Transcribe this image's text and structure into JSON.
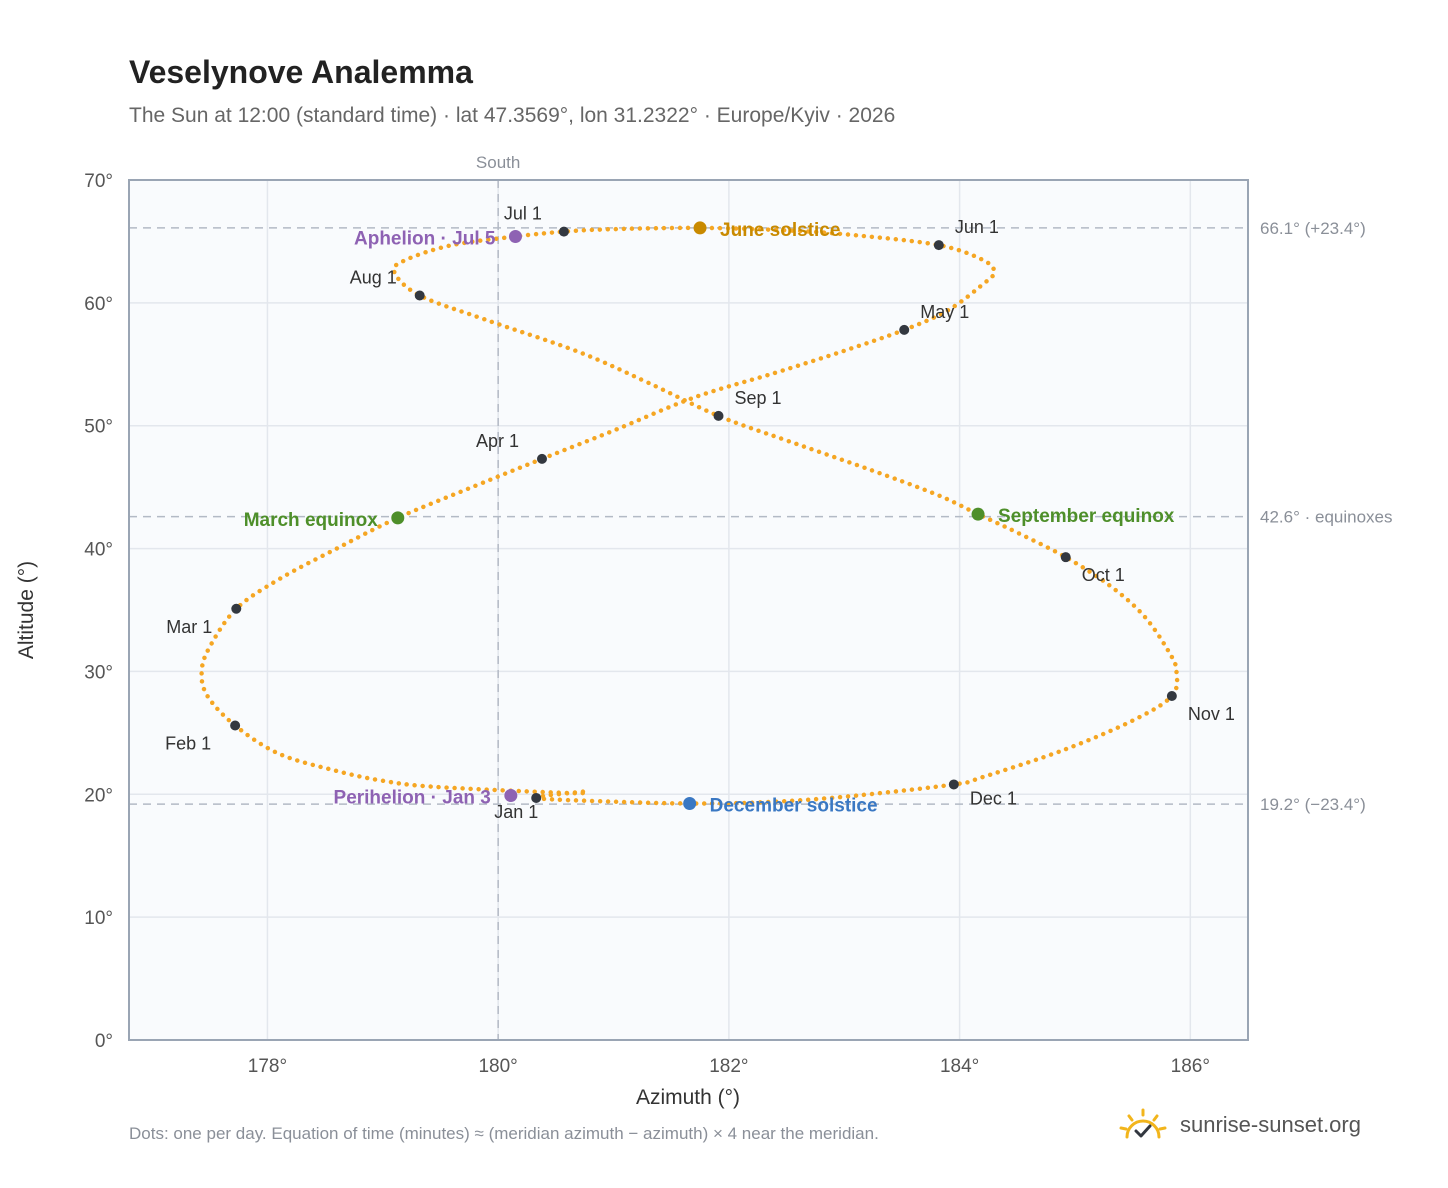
{
  "title": "Veselynove Analemma",
  "subtitle": "The Sun at 12:00 (standard time) · lat 47.3569°, lon 31.2322° · Europe/Kyiv · 2026",
  "footnote": "Dots: one per day. Equation of time (minutes) ≈ (meridian azimuth − azimuth) × 4 near the meridian.",
  "brand": {
    "name": "sunrise-sunset.org",
    "icon": "sun-check-icon"
  },
  "colors": {
    "path": "#f5a623",
    "month_dot": "#333840",
    "june_solstice": "#c98a00",
    "december_solstice": "#3a78c3",
    "equinox": "#4e8f2a",
    "apsis": "#8e62b3",
    "plot_bg": "#f9fbfd",
    "grid": "#e3e7ed",
    "frame": "#9aa5b4",
    "ref_line": "#b3bac5"
  },
  "chart_data": {
    "type": "scatter",
    "xlabel": "Azimuth (°)",
    "ylabel": "Altitude (°)",
    "xlim": [
      176.8,
      186.5
    ],
    "ylim": [
      0,
      70
    ],
    "x_ticks": [
      178,
      180,
      182,
      184,
      186
    ],
    "x_tick_labels": [
      "178°",
      "180°",
      "182°",
      "184°",
      "186°"
    ],
    "y_ticks": [
      0,
      10,
      20,
      30,
      40,
      50,
      60,
      70
    ],
    "y_tick_labels": [
      "0°",
      "10°",
      "20°",
      "30°",
      "40°",
      "50°",
      "60°",
      "70°"
    ],
    "grid": true,
    "south_line": {
      "x": 180,
      "label": "South"
    },
    "reference_lines": [
      {
        "y": 66.1,
        "label": "66.1° (+23.4°)"
      },
      {
        "y": 42.6,
        "label": "42.6° · equinoxes"
      },
      {
        "y": 19.2,
        "label": "19.2° (−23.4°)"
      }
    ],
    "daily_path": [
      [
        180.33,
        19.7
      ],
      [
        180.72,
        20.2
      ],
      [
        180.62,
        20.1
      ],
      [
        179.46,
        20.6
      ],
      [
        179.0,
        21.1
      ],
      [
        178.6,
        21.9
      ],
      [
        178.1,
        23.3
      ],
      [
        177.72,
        25.6
      ],
      [
        177.48,
        28.0
      ],
      [
        177.43,
        30.0
      ],
      [
        177.5,
        32.0
      ],
      [
        177.73,
        35.1
      ],
      [
        178.1,
        37.5
      ],
      [
        178.6,
        40.0
      ],
      [
        179.13,
        42.5
      ],
      [
        179.8,
        45.1
      ],
      [
        180.38,
        47.3
      ],
      [
        181.0,
        49.6
      ],
      [
        181.7,
        52.3
      ],
      [
        182.4,
        54.3
      ],
      [
        183.0,
        56.1
      ],
      [
        183.52,
        57.8
      ],
      [
        183.9,
        59.4
      ],
      [
        184.2,
        61.5
      ],
      [
        184.3,
        62.5
      ],
      [
        184.2,
        63.5
      ],
      [
        183.82,
        64.7
      ],
      [
        183.1,
        65.5
      ],
      [
        182.5,
        65.9
      ],
      [
        181.75,
        66.1
      ],
      [
        181.0,
        66.0
      ],
      [
        180.57,
        65.8
      ],
      [
        180.15,
        65.4
      ],
      [
        179.6,
        64.7
      ],
      [
        179.2,
        63.5
      ],
      [
        179.1,
        62.5
      ],
      [
        179.32,
        60.6
      ],
      [
        179.9,
        58.6
      ],
      [
        180.7,
        56.0
      ],
      [
        181.3,
        53.5
      ],
      [
        181.91,
        50.8
      ],
      [
        182.5,
        48.8
      ],
      [
        183.2,
        46.5
      ],
      [
        183.8,
        44.4
      ],
      [
        184.16,
        42.8
      ],
      [
        184.5,
        41.3
      ],
      [
        184.92,
        39.3
      ],
      [
        185.3,
        37.0
      ],
      [
        185.6,
        34.5
      ],
      [
        185.82,
        31.5
      ],
      [
        185.88,
        30.0
      ],
      [
        185.84,
        28.0
      ],
      [
        185.5,
        26.0
      ],
      [
        184.9,
        23.6
      ],
      [
        184.2,
        21.4
      ],
      [
        183.95,
        20.8
      ],
      [
        183.0,
        19.8
      ],
      [
        182.3,
        19.35
      ],
      [
        181.66,
        19.25
      ],
      [
        181.0,
        19.4
      ],
      [
        180.33,
        19.7
      ]
    ],
    "month_markers": [
      {
        "label": "Jan 1",
        "x": 180.33,
        "y": 19.7
      },
      {
        "label": "Feb 1",
        "x": 177.72,
        "y": 25.6
      },
      {
        "label": "Mar 1",
        "x": 177.73,
        "y": 35.1
      },
      {
        "label": "Apr 1",
        "x": 180.38,
        "y": 47.3
      },
      {
        "label": "May 1",
        "x": 183.52,
        "y": 57.8
      },
      {
        "label": "Jun 1",
        "x": 183.82,
        "y": 64.7
      },
      {
        "label": "Jul 1",
        "x": 180.57,
        "y": 65.8
      },
      {
        "label": "Aug 1",
        "x": 179.32,
        "y": 60.6
      },
      {
        "label": "Sep 1",
        "x": 181.91,
        "y": 50.8
      },
      {
        "label": "Oct 1",
        "x": 184.92,
        "y": 39.3
      },
      {
        "label": "Nov 1",
        "x": 185.84,
        "y": 28.0
      },
      {
        "label": "Dec 1",
        "x": 183.95,
        "y": 20.8
      }
    ],
    "events": [
      {
        "label": "June solstice",
        "x": 181.75,
        "y": 66.1,
        "color": "#c98a00"
      },
      {
        "label": "December solstice",
        "x": 181.66,
        "y": 19.25,
        "color": "#3a78c3"
      },
      {
        "label": "March equinox",
        "x": 179.13,
        "y": 42.5,
        "color": "#4e8f2a"
      },
      {
        "label": "September equinox",
        "x": 184.16,
        "y": 42.8,
        "color": "#4e8f2a"
      },
      {
        "label": "Aphelion · Jul 5",
        "x": 180.15,
        "y": 65.4,
        "color": "#8e62b3"
      },
      {
        "label": "Perihelion · Jan 3",
        "x": 180.11,
        "y": 19.9,
        "color": "#8e62b3"
      }
    ]
  }
}
